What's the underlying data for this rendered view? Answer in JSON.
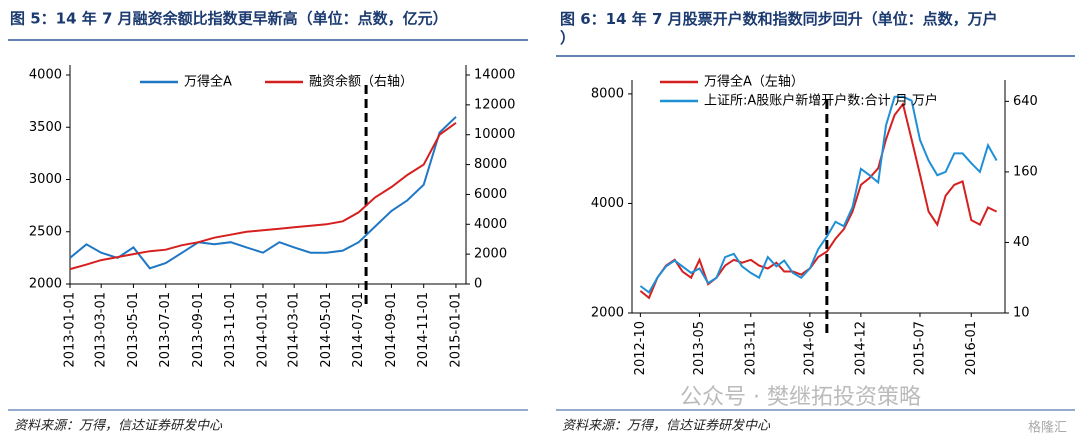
{
  "chart_data": [
    {
      "type": "line",
      "title": "图 5：14 年 7 月融资余额比指数更早新高（单位：点数，亿元）",
      "source": "资料来源：万得，信达证券研发中心",
      "x": [
        "2013-01-01",
        "2013-02-01",
        "2013-03-01",
        "2013-04-01",
        "2013-05-01",
        "2013-06-01",
        "2013-07-01",
        "2013-08-01",
        "2013-09-01",
        "2013-10-01",
        "2013-11-01",
        "2013-12-01",
        "2014-01-01",
        "2014-02-01",
        "2014-03-01",
        "2014-04-01",
        "2014-05-01",
        "2014-06-01",
        "2014-07-01",
        "2014-08-01",
        "2014-09-01",
        "2014-10-01",
        "2014-11-01",
        "2014-12-01",
        "2015-01-01"
      ],
      "series": [
        {
          "name": "万得全A",
          "color": "#1f77c4",
          "axis": "y",
          "values": [
            2250,
            2380,
            2300,
            2250,
            2350,
            2150,
            2200,
            2300,
            2400,
            2380,
            2400,
            2350,
            2300,
            2400,
            2350,
            2300,
            2300,
            2320,
            2400,
            2550,
            2700,
            2800,
            2950,
            3450,
            3600
          ]
        },
        {
          "name": "融资余额（右轴）",
          "color": "#d62020",
          "axis": "y2",
          "values": [
            1000,
            1300,
            1600,
            1800,
            2000,
            2200,
            2300,
            2600,
            2800,
            3100,
            3300,
            3500,
            3600,
            3700,
            3800,
            3900,
            4000,
            4200,
            4800,
            5800,
            6500,
            7300,
            8000,
            10000,
            10800
          ]
        }
      ],
      "xlim": [
        "2013-01-01",
        "2015-01-20"
      ],
      "xticks": [
        "2013-01-01",
        "2013-03-01",
        "2013-05-01",
        "2013-07-01",
        "2013-09-01",
        "2013-11-01",
        "2014-01-01",
        "2014-03-01",
        "2014-05-01",
        "2014-07-01",
        "2014-09-01",
        "2014-11-01",
        "2015-01-01"
      ],
      "ylim": [
        2000,
        4000
      ],
      "yticks": [
        2000,
        2500,
        3000,
        3500,
        4000
      ],
      "y2lim": [
        0,
        14000
      ],
      "y2ticks": [
        0,
        2000,
        4000,
        6000,
        8000,
        10000,
        12000,
        14000
      ],
      "log_scale": false,
      "reference_line": {
        "x": "2014-07-15",
        "style": "dashed"
      },
      "legend": "top"
    },
    {
      "type": "line",
      "title": "图 6：14 年 7 月股票开户数和指数同步回升（单位：点数，万户）",
      "source": "资料来源：万得，信达证券研发中心",
      "x": [
        "2012-10",
        "2012-11",
        "2012-12",
        "2013-01",
        "2013-02",
        "2013-03",
        "2013-04",
        "2013-05",
        "2013-06",
        "2013-07",
        "2013-08",
        "2013-09",
        "2013-10",
        "2013-11",
        "2013-12",
        "2014-01",
        "2014-02",
        "2014-03",
        "2014-04",
        "2014-05",
        "2014-06",
        "2014-07",
        "2014-08",
        "2014-09",
        "2014-10",
        "2014-11",
        "2014-12",
        "2015-01",
        "2015-02",
        "2015-03",
        "2015-04",
        "2015-05",
        "2015-06",
        "2015-07",
        "2015-08",
        "2015-09",
        "2015-10",
        "2015-11",
        "2015-12",
        "2016-01",
        "2016-02",
        "2016-03",
        "2016-04"
      ],
      "series": [
        {
          "name": "万得全A（左轴）",
          "color": "#d62020",
          "axis": "y",
          "values": [
            2300,
            2200,
            2500,
            2700,
            2800,
            2600,
            2500,
            2800,
            2400,
            2500,
            2700,
            2800,
            2750,
            2800,
            2700,
            2650,
            2750,
            2600,
            2600,
            2550,
            2650,
            2850,
            2950,
            3200,
            3400,
            3800,
            4500,
            4700,
            5000,
            6000,
            7000,
            7500,
            6000,
            4800,
            3800,
            3500,
            4200,
            4500,
            4600,
            3600,
            3500,
            3900,
            3800
          ]
        },
        {
          "name": "上证所:A股账户新增开户数:合计 月 万户",
          "color": "#1f8fd6",
          "axis": "y2",
          "values": [
            17,
            15,
            20,
            25,
            28,
            25,
            22,
            24,
            18,
            20,
            30,
            32,
            25,
            22,
            20,
            30,
            25,
            28,
            22,
            20,
            24,
            35,
            45,
            60,
            55,
            80,
            170,
            150,
            130,
            400,
            700,
            700,
            650,
            300,
            200,
            150,
            160,
            230,
            230,
            190,
            160,
            270,
            200
          ]
        }
      ],
      "xlim": [
        "2012-09",
        "2016-05"
      ],
      "xticks": [
        "2012-10",
        "2013-05",
        "2013-11",
        "2014-06",
        "2014-12",
        "2015-07",
        "2016-01"
      ],
      "ylim": [
        2000,
        8200
      ],
      "yticks": [
        2000,
        4000,
        8000
      ],
      "y2lim": [
        10,
        800
      ],
      "y2ticks": [
        10,
        40,
        160,
        640
      ],
      "log_scale": true,
      "reference_line": {
        "x": "2014-08",
        "style": "dashed"
      },
      "legend": "upper left"
    }
  ],
  "watermark": "公众号 · 樊继拓投资策略",
  "logo": "格隆汇"
}
